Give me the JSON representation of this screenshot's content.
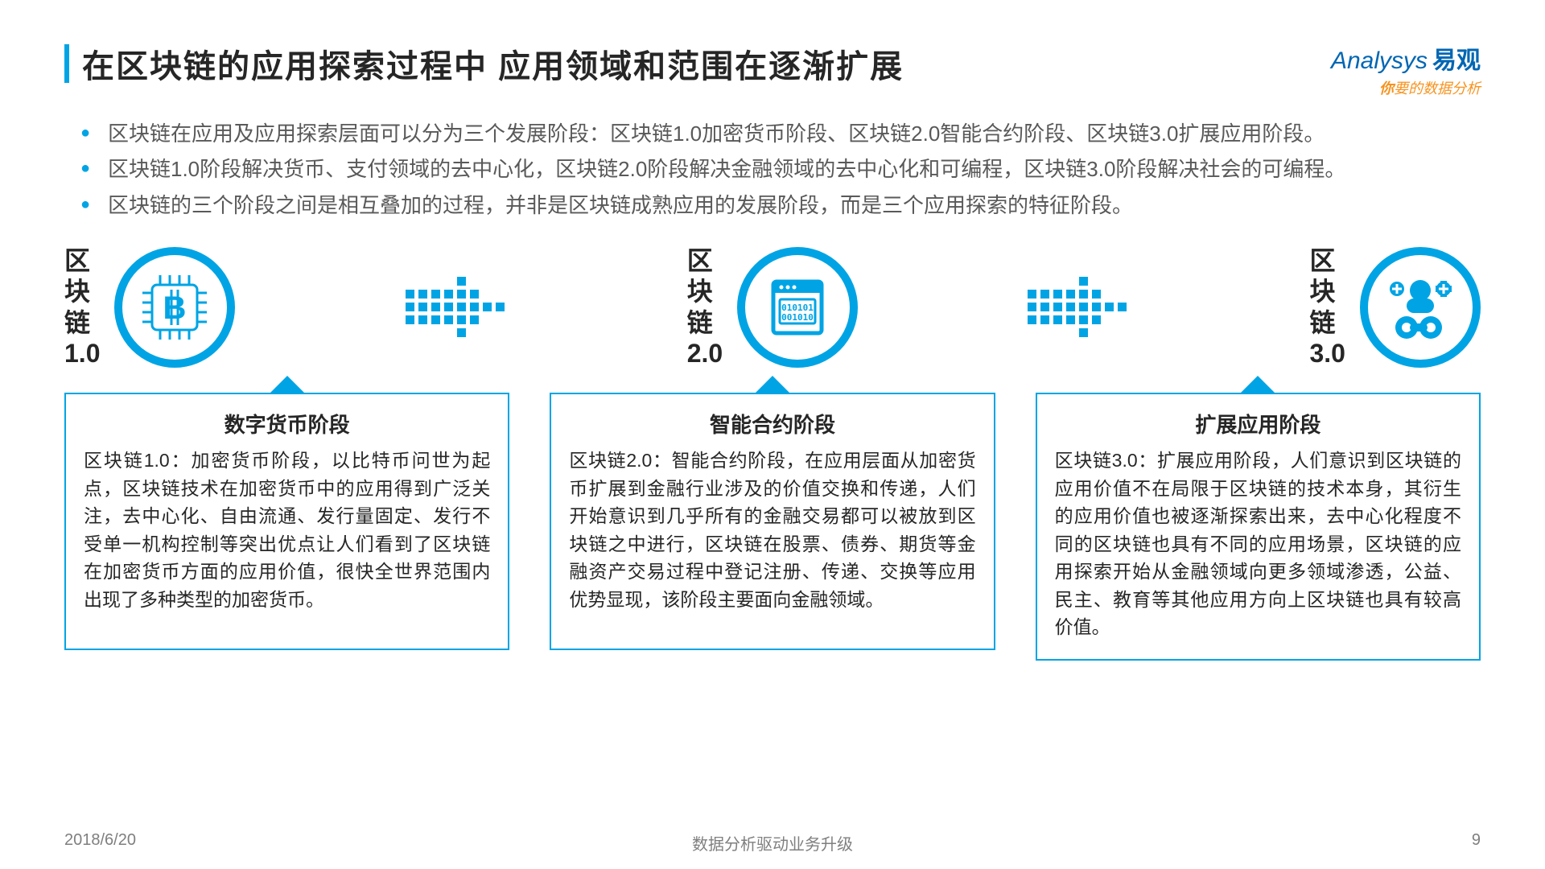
{
  "colors": {
    "accent": "#00a4e4",
    "text": "#262626",
    "muted": "#595959",
    "logoBlue": "#0066b3",
    "logoOrange": "#f7931e"
  },
  "title": "在区块链的应用探索过程中  应用领域和范围在逐渐扩展",
  "logo": {
    "brand": "Analysys",
    "cn": "易观",
    "tagline_hi": "你",
    "tagline_rest": "要的数据分析"
  },
  "bullets": [
    "区块链在应用及应用探索层面可以分为三个发展阶段：区块链1.0加密货币阶段、区块链2.0智能合约阶段、区块链3.0扩展应用阶段。",
    "区块链1.0阶段解决货币、支付领域的去中心化，区块链2.0阶段解决金融领域的去中心化和可编程，区块链3.0阶段解决社会的可编程。",
    "区块链的三个阶段之间是相互叠加的过程，并非是区块链成熟应用的发展阶段，而是三个应用探索的特征阶段。"
  ],
  "stages": [
    {
      "label": [
        "区",
        "块",
        "链",
        "1.0"
      ],
      "icon": "bitcoin"
    },
    {
      "label": [
        "区",
        "块",
        "链",
        "2.0"
      ],
      "icon": "contract"
    },
    {
      "label": [
        "区",
        "块",
        "链",
        "3.0"
      ],
      "icon": "chain"
    }
  ],
  "boxes": [
    {
      "title": "数字货币阶段",
      "text": "区块链1.0：加密货币阶段，以比特币问世为起点，区块链技术在加密货币中的应用得到广泛关注，去中心化、自由流通、发行量固定、发行不受单一机构控制等突出优点让人们看到了区块链在加密货币方面的应用价值，很快全世界范围内出现了多种类型的加密货币。"
    },
    {
      "title": "智能合约阶段",
      "text": "区块链2.0：智能合约阶段，在应用层面从加密货币扩展到金融行业涉及的价值交换和传递，人们开始意识到几乎所有的金融交易都可以被放到区块链之中进行，区块链在股票、债券、期货等金融资产交易过程中登记注册、传递、交换等应用优势显现，该阶段主要面向金融领域。"
    },
    {
      "title": "扩展应用阶段",
      "text": "区块链3.0：扩展应用阶段，人们意识到区块链的应用价值不在局限于区块链的技术本身，其衍生的应用价值也被逐渐探索出来，去中心化程度不同的区块链也具有不同的应用场景，区块链的应用探索开始从金融领域向更多领域渗透，公益、民主、教育等其他应用方向上区块链也具有较高价值。"
    }
  ],
  "footer": {
    "date": "2018/6/20",
    "center": "数据分析驱动业务升级",
    "page": "9"
  }
}
